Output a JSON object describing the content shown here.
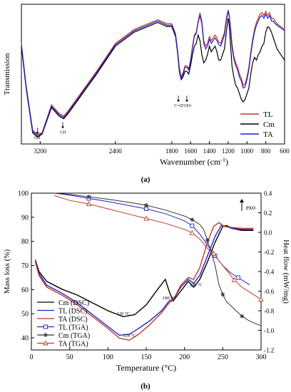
{
  "chart_data": [
    {
      "type": "line",
      "panel_label": "(a)",
      "xlabel": "Wavenumber (cm",
      "xlabel_sup": "-1",
      "xlabel_tail": ")",
      "ylabel": "Transmission",
      "xlim": [
        3400,
        600
      ],
      "x_reversed": true,
      "ylim": [
        0,
        1
      ],
      "yticks_shown": false,
      "grid": false,
      "legend_position": "bottom-right",
      "xticks": [
        {
          "v": 3200,
          "label": "3200"
        },
        {
          "v": 2400,
          "label": "2400"
        },
        {
          "v": 1800,
          "label": "1800"
        },
        {
          "v": 1600,
          "label": "1600"
        },
        {
          "v": 1400,
          "label": "1400"
        },
        {
          "v": 1200,
          "label": "1200"
        },
        {
          "v": 1000,
          "label": "1000"
        },
        {
          "v": 800,
          "label": "800"
        },
        {
          "v": 600,
          "label": "600"
        }
      ],
      "annotations": [
        {
          "text": "OH",
          "x": 3230,
          "y": 0.055
        },
        {
          "text": "CH",
          "x": 2960,
          "y": 0.095
        },
        {
          "text": "C=O",
          "x": 1730,
          "y": 0.285
        },
        {
          "text": "COO-",
          "x": 1640,
          "y": 0.285
        }
      ],
      "series": [
        {
          "name": "TL",
          "color": "#c0392b",
          "x": [
            3400,
            3350,
            3280,
            3230,
            3180,
            3080,
            3000,
            2950,
            2900,
            2600,
            2400,
            2200,
            1950,
            1850,
            1800,
            1760,
            1740,
            1720,
            1700,
            1680,
            1660,
            1640,
            1620,
            1600,
            1580,
            1560,
            1540,
            1520,
            1500,
            1480,
            1460,
            1440,
            1420,
            1400,
            1380,
            1360,
            1340,
            1320,
            1300,
            1280,
            1260,
            1240,
            1220,
            1200,
            1190,
            1180,
            1170,
            1160,
            1140,
            1120,
            1100,
            1080,
            1060,
            1040,
            1020,
            1000,
            980,
            960,
            940,
            920,
            900,
            880,
            860,
            840,
            820,
            800,
            780,
            760,
            740,
            720,
            700,
            680,
            660,
            640,
            620,
            600
          ],
          "y": [
            0.72,
            0.42,
            0.1,
            0.07,
            0.08,
            0.28,
            0.22,
            0.2,
            0.24,
            0.52,
            0.72,
            0.82,
            0.89,
            0.86,
            0.86,
            0.79,
            0.68,
            0.55,
            0.48,
            0.51,
            0.56,
            0.56,
            0.54,
            0.6,
            0.7,
            0.78,
            0.8,
            0.88,
            0.94,
            0.88,
            0.74,
            0.7,
            0.72,
            0.77,
            0.74,
            0.76,
            0.78,
            0.76,
            0.73,
            0.72,
            0.76,
            0.8,
            0.9,
            0.96,
            0.93,
            0.87,
            0.8,
            0.72,
            0.63,
            0.58,
            0.55,
            0.5,
            0.47,
            0.42,
            0.43,
            0.48,
            0.55,
            0.66,
            0.75,
            0.82,
            0.87,
            0.9,
            0.93,
            0.94,
            0.92,
            0.95,
            0.92,
            0.94,
            0.9,
            0.9,
            0.88,
            0.86,
            0.85,
            0.84,
            0.83,
            0.82
          ]
        },
        {
          "name": "Cm",
          "color": "#000000",
          "x": [
            3400,
            3350,
            3280,
            3230,
            3180,
            3080,
            3000,
            2950,
            2900,
            2600,
            2400,
            2200,
            1950,
            1850,
            1800,
            1760,
            1740,
            1720,
            1700,
            1680,
            1660,
            1640,
            1620,
            1600,
            1580,
            1560,
            1540,
            1520,
            1500,
            1480,
            1460,
            1440,
            1420,
            1400,
            1380,
            1360,
            1340,
            1320,
            1300,
            1280,
            1260,
            1240,
            1220,
            1200,
            1190,
            1180,
            1170,
            1160,
            1140,
            1120,
            1100,
            1080,
            1060,
            1040,
            1020,
            1000,
            980,
            960,
            940,
            920,
            900,
            880,
            860,
            840,
            820,
            800,
            780,
            760,
            740,
            720,
            700,
            680,
            660,
            640,
            620,
            600
          ],
          "y": [
            0.7,
            0.4,
            0.08,
            0.05,
            0.07,
            0.26,
            0.2,
            0.18,
            0.22,
            0.5,
            0.7,
            0.8,
            0.87,
            0.84,
            0.84,
            0.77,
            0.66,
            0.52,
            0.46,
            0.48,
            0.52,
            0.52,
            0.5,
            0.56,
            0.64,
            0.7,
            0.72,
            0.78,
            0.74,
            0.64,
            0.58,
            0.6,
            0.64,
            0.7,
            0.66,
            0.68,
            0.7,
            0.66,
            0.6,
            0.6,
            0.64,
            0.68,
            0.8,
            0.9,
            0.86,
            0.76,
            0.66,
            0.56,
            0.48,
            0.42,
            0.4,
            0.36,
            0.32,
            0.3,
            0.32,
            0.36,
            0.4,
            0.5,
            0.58,
            0.62,
            0.6,
            0.64,
            0.66,
            0.7,
            0.72,
            0.8,
            0.84,
            0.83,
            0.8,
            0.76,
            0.72,
            0.68,
            0.66,
            0.64,
            0.62,
            0.6
          ]
        },
        {
          "name": "TA",
          "color": "#2020c8",
          "x": [
            3400,
            3350,
            3280,
            3230,
            3180,
            3080,
            3000,
            2950,
            2900,
            2600,
            2400,
            2200,
            1950,
            1850,
            1800,
            1760,
            1740,
            1720,
            1700,
            1680,
            1660,
            1640,
            1620,
            1600,
            1580,
            1560,
            1540,
            1520,
            1500,
            1480,
            1460,
            1440,
            1420,
            1400,
            1380,
            1360,
            1340,
            1320,
            1300,
            1280,
            1260,
            1240,
            1220,
            1200,
            1190,
            1180,
            1170,
            1160,
            1140,
            1120,
            1100,
            1080,
            1060,
            1040,
            1020,
            1000,
            980,
            960,
            940,
            920,
            900,
            880,
            860,
            840,
            820,
            800,
            780,
            760,
            740,
            720,
            700,
            680,
            660,
            640,
            620,
            600
          ],
          "y": [
            0.71,
            0.41,
            0.09,
            0.06,
            0.075,
            0.27,
            0.21,
            0.19,
            0.23,
            0.51,
            0.71,
            0.81,
            0.88,
            0.85,
            0.85,
            0.78,
            0.67,
            0.53,
            0.47,
            0.5,
            0.55,
            0.55,
            0.53,
            0.59,
            0.69,
            0.77,
            0.79,
            0.87,
            0.92,
            0.86,
            0.72,
            0.68,
            0.7,
            0.75,
            0.72,
            0.74,
            0.76,
            0.74,
            0.71,
            0.7,
            0.74,
            0.78,
            0.88,
            0.95,
            0.92,
            0.86,
            0.78,
            0.7,
            0.61,
            0.56,
            0.53,
            0.48,
            0.45,
            0.4,
            0.41,
            0.46,
            0.53,
            0.64,
            0.73,
            0.8,
            0.85,
            0.88,
            0.91,
            0.92,
            0.9,
            0.93,
            0.9,
            0.92,
            0.88,
            0.88,
            0.86,
            0.85,
            0.84,
            0.83,
            0.82,
            0.81
          ]
        }
      ]
    },
    {
      "type": "line",
      "panel_label": "(b)",
      "xlabel": "Temperature (°C)",
      "ylabel": "Mass loss (%)",
      "ylabel_right": "Heat flow (mW/mg)",
      "exo_label": "exo",
      "xlim": [
        0,
        300
      ],
      "ylim": [
        35,
        100
      ],
      "ylim_right": [
        -1.2,
        0.4
      ],
      "grid": false,
      "legend_position": "bottom-left",
      "xticks": [
        0,
        50,
        100,
        150,
        200,
        250,
        300
      ],
      "yticks": [
        40,
        50,
        60,
        70,
        80,
        90,
        100
      ],
      "yticks_right": [
        {
          "v": 0.4,
          "label": "0.4"
        },
        {
          "v": 0.2,
          "label": "0.2"
        },
        {
          "v": 0.0,
          "label": "0.0"
        },
        {
          "v": -0.2,
          "label": "-0.2"
        },
        {
          "v": -0.4,
          "label": "-0.4"
        },
        {
          "v": -0.6,
          "label": "-0.6"
        },
        {
          "v": -0.8,
          "label": "-0.8"
        },
        {
          "v": -1.0,
          "label": "-1.0"
        },
        {
          "v": -1.2,
          "label": "-1.2"
        }
      ],
      "annotations": [
        {
          "text": "120 °C",
          "x": 120,
          "y": 49.5
        },
        {
          "text": "180 °C",
          "x": 180,
          "y": 56
        },
        {
          "text": "208 °C",
          "x": 215,
          "y": 61.5
        },
        {
          "text": "128 °C",
          "x": 128,
          "y": 40.5
        }
      ],
      "series": [
        {
          "name": "Cm (DSC)",
          "color": "#000000",
          "marker": "none",
          "axis": "right",
          "x": [
            5,
            10,
            20,
            40,
            60,
            80,
            100,
            120,
            135,
            150,
            165,
            175,
            180,
            185,
            195,
            205,
            212,
            220,
            230,
            240,
            250,
            255,
            262,
            275,
            290
          ],
          "y": [
            -0.28,
            -0.4,
            -0.5,
            -0.58,
            -0.64,
            -0.72,
            -0.8,
            -0.86,
            -0.84,
            -0.74,
            -0.58,
            -0.48,
            -0.6,
            -0.7,
            -0.6,
            -0.5,
            -0.56,
            -0.48,
            -0.3,
            -0.1,
            0.06,
            0.07,
            0.04,
            0.02,
            0.02
          ]
        },
        {
          "name": "TL (DSC)",
          "color": "#2020c8",
          "marker": "none",
          "axis": "right",
          "x": [
            5,
            10,
            20,
            40,
            60,
            80,
            100,
            115,
            128,
            140,
            155,
            170,
            180,
            186,
            195,
            205,
            212,
            220,
            230,
            240,
            248,
            255,
            262,
            275,
            290
          ],
          "y": [
            -0.28,
            -0.42,
            -0.54,
            -0.62,
            -0.72,
            -0.84,
            -0.96,
            -1.05,
            -1.04,
            -0.98,
            -0.9,
            -0.8,
            -0.7,
            -0.68,
            -0.56,
            -0.48,
            -0.52,
            -0.44,
            -0.24,
            -0.04,
            0.07,
            0.06,
            0.04,
            0.03,
            0.03
          ]
        },
        {
          "name": "TA (DSC)",
          "color": "#c0392b",
          "marker": "none",
          "axis": "right",
          "x": [
            5,
            10,
            20,
            40,
            60,
            80,
            100,
            115,
            128,
            140,
            155,
            170,
            180,
            186,
            195,
            205,
            212,
            220,
            230,
            238,
            245,
            252,
            262,
            275,
            290
          ],
          "y": [
            -0.3,
            -0.44,
            -0.56,
            -0.64,
            -0.74,
            -0.86,
            -0.98,
            -1.08,
            -1.1,
            -1.04,
            -0.94,
            -0.82,
            -0.72,
            -0.68,
            -0.54,
            -0.46,
            -0.48,
            -0.36,
            -0.1,
            0.06,
            0.1,
            0.06,
            0.05,
            0.04,
            0.04
          ]
        },
        {
          "name": "TL (TGA)",
          "color": "#2020c8",
          "marker": "square",
          "axis": "left",
          "x": [
            30,
            50,
            75,
            100,
            125,
            150,
            175,
            200,
            210,
            220,
            230,
            240,
            250,
            260,
            270,
            285
          ],
          "y": [
            100,
            99.2,
            97.8,
            96.5,
            95,
            93.5,
            91.5,
            88.5,
            86.5,
            83,
            78.5,
            74,
            70,
            67,
            65,
            62
          ]
        },
        {
          "name": "Cm (TGA)",
          "color": "#333333",
          "marker": "asterisk",
          "axis": "left",
          "x": [
            30,
            50,
            75,
            100,
            125,
            150,
            175,
            200,
            210,
            220,
            225,
            230,
            240,
            245,
            250,
            255,
            265,
            275,
            285,
            300
          ],
          "y": [
            100,
            99.5,
            98.5,
            97.5,
            96.3,
            95,
            93,
            90.5,
            89,
            87,
            85,
            80.5,
            70,
            62,
            58,
            55,
            52,
            49,
            47,
            45
          ]
        },
        {
          "name": "TA (TGA)",
          "color": "#c0392b",
          "marker": "triangle",
          "axis": "left",
          "x": [
            30,
            50,
            75,
            100,
            125,
            150,
            175,
            200,
            210,
            220,
            230,
            238,
            245,
            255,
            265,
            275,
            285,
            300
          ],
          "y": [
            99,
            97,
            95.5,
            93.5,
            91.5,
            89.5,
            87.5,
            85,
            83.5,
            81,
            77,
            75,
            72,
            68,
            64,
            61,
            59,
            56
          ]
        }
      ]
    }
  ]
}
